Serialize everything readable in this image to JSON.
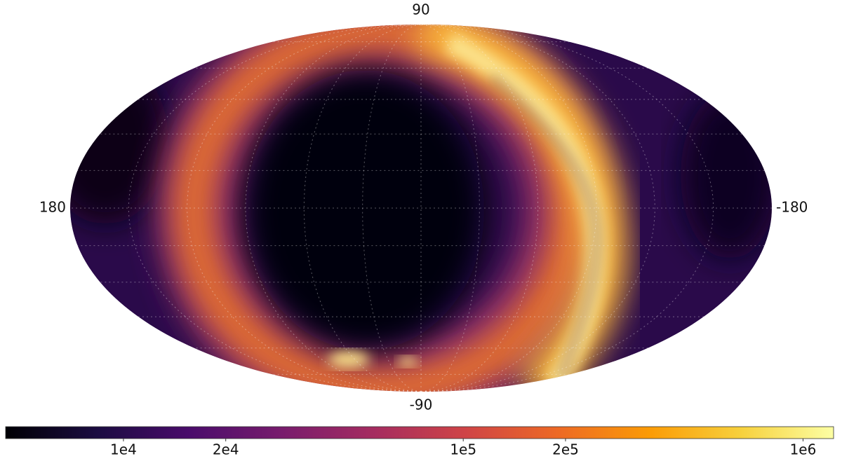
{
  "chart_data": {
    "type": "mollweide",
    "colormap": "inferno",
    "log_scale": true,
    "clim": [
      4500,
      1230000
    ],
    "cticks": [
      {
        "value": 10000,
        "label": "1e4"
      },
      {
        "value": 20000,
        "label": "2e4"
      },
      {
        "value": 100000,
        "label": "1e5"
      },
      {
        "value": 200000,
        "label": "2e5"
      },
      {
        "value": 1000000,
        "label": "1e6"
      }
    ],
    "lat_ticks": [
      90,
      -90
    ],
    "lon_ticks": [
      180,
      -180
    ]
  }
}
